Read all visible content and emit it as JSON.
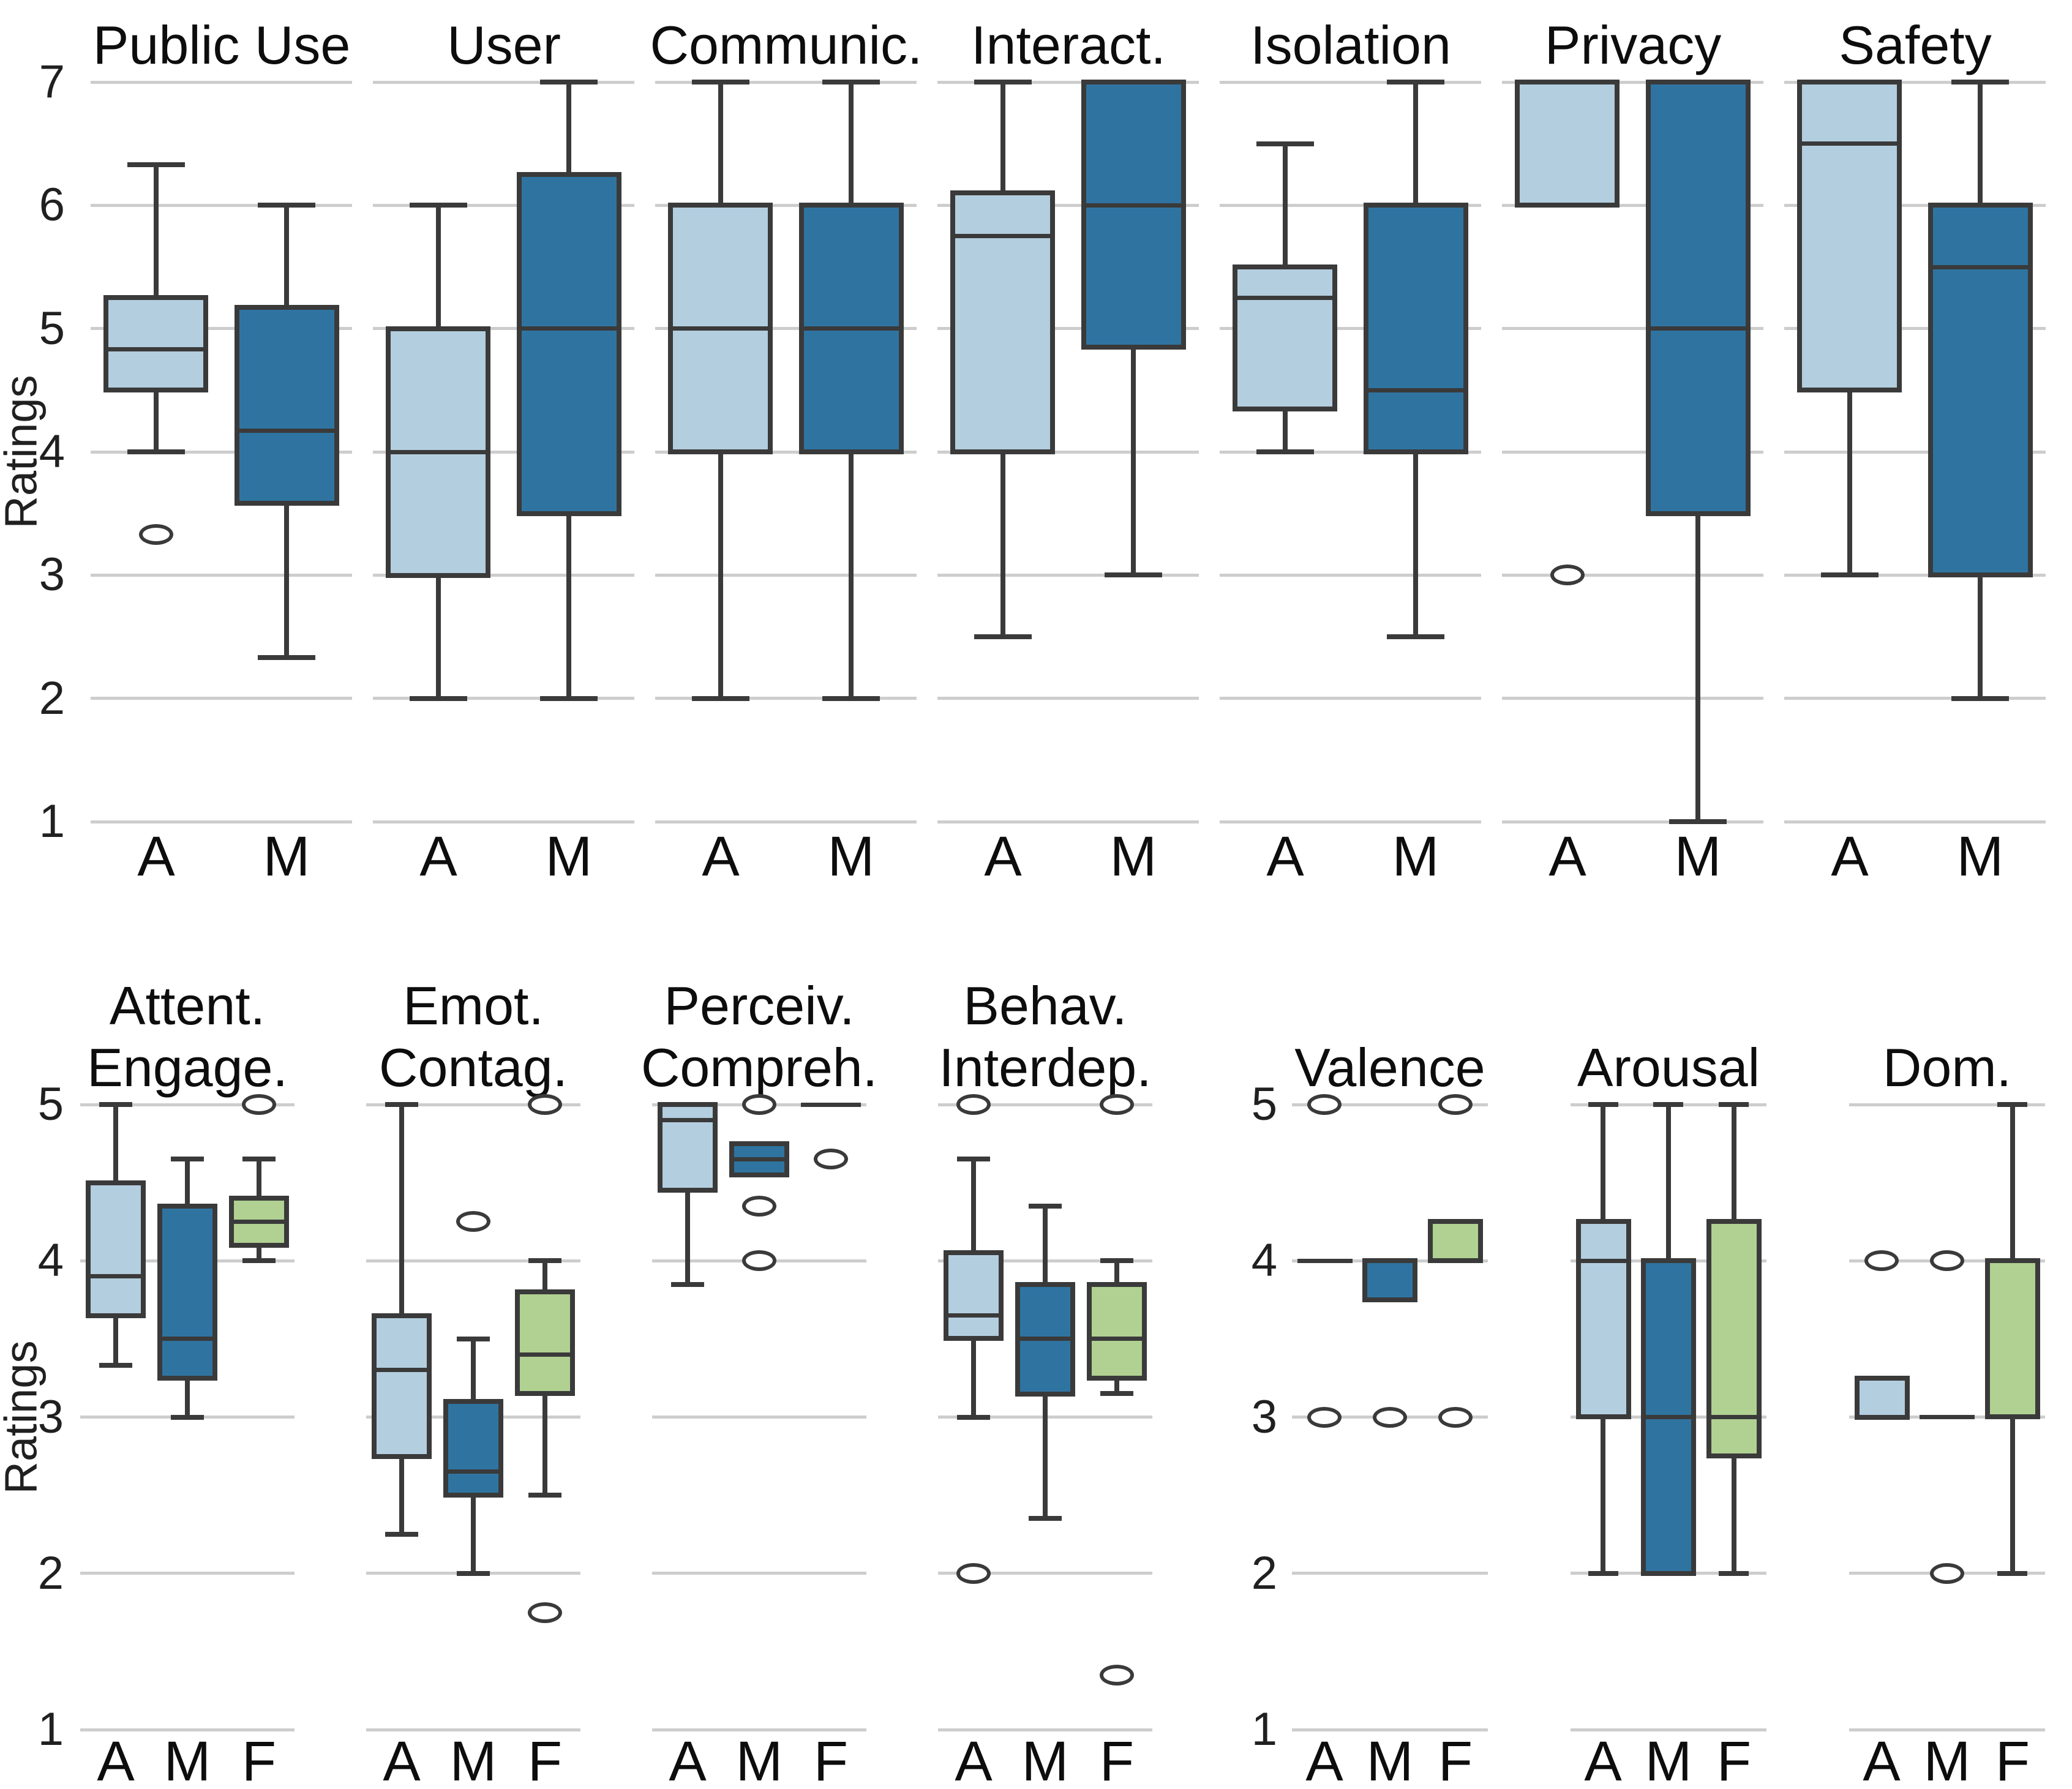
{
  "chart_data": {
    "type": "boxplot",
    "title": "",
    "ylabel": "Ratings",
    "grid": true,
    "colors": {
      "A": "#b3cedf",
      "M": "#2f74a1",
      "F": "#b0d192",
      "box_border": "#3a3a3a",
      "gridline": "#cdcdcd",
      "text": "#111111"
    },
    "rows": [
      {
        "ylabel": "Ratings",
        "ylim": [
          1,
          7
        ],
        "yticks": [
          7,
          6,
          5,
          4,
          3,
          2,
          1
        ],
        "categories": [
          "A",
          "M"
        ],
        "groups": [
          {
            "panels": [
              {
                "title": "Public Use",
                "boxes": [
                  {
                    "cat": "A",
                    "whislo": 4.0,
                    "q1": 4.5,
                    "med": 4.83,
                    "q3": 5.25,
                    "whishi": 6.33,
                    "fliers": [
                      3.33
                    ]
                  },
                  {
                    "cat": "M",
                    "whislo": 2.33,
                    "q1": 3.58,
                    "med": 4.17,
                    "q3": 5.17,
                    "whishi": 6.0,
                    "fliers": []
                  }
                ]
              },
              {
                "title": "User",
                "boxes": [
                  {
                    "cat": "A",
                    "whislo": 2.0,
                    "q1": 3.0,
                    "med": 4.0,
                    "q3": 5.0,
                    "whishi": 6.0,
                    "fliers": []
                  },
                  {
                    "cat": "M",
                    "whislo": 2.0,
                    "q1": 3.5,
                    "med": 5.0,
                    "q3": 6.25,
                    "whishi": 7.0,
                    "fliers": []
                  }
                ]
              },
              {
                "title": "Communic.",
                "boxes": [
                  {
                    "cat": "A",
                    "whislo": 2.0,
                    "q1": 4.0,
                    "med": 5.0,
                    "q3": 6.0,
                    "whishi": 7.0,
                    "fliers": []
                  },
                  {
                    "cat": "M",
                    "whislo": 2.0,
                    "q1": 4.0,
                    "med": 5.0,
                    "q3": 6.0,
                    "whishi": 7.0,
                    "fliers": []
                  }
                ]
              },
              {
                "title": "Interact.",
                "boxes": [
                  {
                    "cat": "A",
                    "whislo": 2.5,
                    "q1": 4.0,
                    "med": 5.75,
                    "q3": 6.1,
                    "whishi": 7.0,
                    "fliers": []
                  },
                  {
                    "cat": "M",
                    "whislo": 3.0,
                    "q1": 4.85,
                    "med": 6.0,
                    "q3": 7.0,
                    "whishi": 7.0,
                    "fliers": []
                  }
                ]
              },
              {
                "title": "Isolation",
                "boxes": [
                  {
                    "cat": "A",
                    "whislo": 4.0,
                    "q1": 4.35,
                    "med": 5.25,
                    "q3": 5.5,
                    "whishi": 6.5,
                    "fliers": []
                  },
                  {
                    "cat": "M",
                    "whislo": 2.5,
                    "q1": 4.0,
                    "med": 4.5,
                    "q3": 6.0,
                    "whishi": 7.0,
                    "fliers": []
                  }
                ]
              },
              {
                "title": "Privacy",
                "boxes": [
                  {
                    "cat": "A",
                    "whislo": 6.0,
                    "q1": 6.0,
                    "med": 7.0,
                    "q3": 7.0,
                    "whishi": 7.0,
                    "fliers": [
                      3.0
                    ]
                  },
                  {
                    "cat": "M",
                    "whislo": 1.0,
                    "q1": 3.5,
                    "med": 5.0,
                    "q3": 7.0,
                    "whishi": 7.0,
                    "fliers": []
                  }
                ]
              },
              {
                "title": "Safety",
                "boxes": [
                  {
                    "cat": "A",
                    "whislo": 3.0,
                    "q1": 4.5,
                    "med": 6.5,
                    "q3": 7.0,
                    "whishi": 7.0,
                    "fliers": []
                  },
                  {
                    "cat": "M",
                    "whislo": 2.0,
                    "q1": 3.0,
                    "med": 5.5,
                    "q3": 6.0,
                    "whishi": 7.0,
                    "fliers": []
                  }
                ]
              }
            ]
          }
        ]
      },
      {
        "ylabel": "Ratings",
        "ylim": [
          1,
          5
        ],
        "yticks": [
          5,
          4,
          3,
          2,
          1
        ],
        "categories": [
          "A",
          "M",
          "F"
        ],
        "groups": [
          {
            "panels": [
              {
                "title": "Attent.\nEngage.",
                "boxes": [
                  {
                    "cat": "A",
                    "whislo": 3.33,
                    "q1": 3.65,
                    "med": 3.9,
                    "q3": 4.5,
                    "whishi": 5.0,
                    "fliers": []
                  },
                  {
                    "cat": "M",
                    "whislo": 3.0,
                    "q1": 3.25,
                    "med": 3.5,
                    "q3": 4.35,
                    "whishi": 4.65,
                    "fliers": []
                  },
                  {
                    "cat": "F",
                    "whislo": 4.0,
                    "q1": 4.1,
                    "med": 4.25,
                    "q3": 4.4,
                    "whishi": 4.65,
                    "fliers": [
                      5.0
                    ]
                  }
                ]
              },
              {
                "title": "Emot.\nContag.",
                "boxes": [
                  {
                    "cat": "A",
                    "whislo": 2.25,
                    "q1": 2.75,
                    "med": 3.3,
                    "q3": 3.65,
                    "whishi": 5.0,
                    "fliers": []
                  },
                  {
                    "cat": "M",
                    "whislo": 2.0,
                    "q1": 2.5,
                    "med": 2.65,
                    "q3": 3.1,
                    "whishi": 3.5,
                    "fliers": [
                      4.25
                    ]
                  },
                  {
                    "cat": "F",
                    "whislo": 2.5,
                    "q1": 3.15,
                    "med": 3.4,
                    "q3": 3.8,
                    "whishi": 4.0,
                    "fliers": [
                      5.0,
                      1.75
                    ]
                  }
                ]
              },
              {
                "title": "Perceiv.\nCompreh.",
                "boxes": [
                  {
                    "cat": "A",
                    "whislo": 3.85,
                    "q1": 4.45,
                    "med": 4.9,
                    "q3": 5.0,
                    "whishi": 5.0,
                    "fliers": []
                  },
                  {
                    "cat": "M",
                    "whislo": 4.55,
                    "q1": 4.55,
                    "med": 4.65,
                    "q3": 4.75,
                    "whishi": 4.75,
                    "fliers": [
                      5.0,
                      4.35,
                      4.0
                    ]
                  },
                  {
                    "cat": "F",
                    "whislo": 5.0,
                    "q1": 5.0,
                    "med": 5.0,
                    "q3": 5.0,
                    "whishi": 5.0,
                    "fliers": [
                      4.65
                    ]
                  }
                ]
              },
              {
                "title": "Behav.\nInterdep.",
                "boxes": [
                  {
                    "cat": "A",
                    "whislo": 3.0,
                    "q1": 3.5,
                    "med": 3.65,
                    "q3": 4.05,
                    "whishi": 4.65,
                    "fliers": [
                      5.0,
                      2.0
                    ]
                  },
                  {
                    "cat": "M",
                    "whislo": 2.35,
                    "q1": 3.15,
                    "med": 3.5,
                    "q3": 3.85,
                    "whishi": 4.35,
                    "fliers": []
                  },
                  {
                    "cat": "F",
                    "whislo": 3.15,
                    "q1": 3.25,
                    "med": 3.5,
                    "q3": 3.85,
                    "whishi": 4.0,
                    "fliers": [
                      5.0,
                      1.35
                    ]
                  }
                ]
              }
            ]
          },
          {
            "panels": [
              {
                "title": "Valence",
                "boxes": [
                  {
                    "cat": "A",
                    "whislo": 4.0,
                    "q1": 4.0,
                    "med": 4.0,
                    "q3": 4.0,
                    "whishi": 4.0,
                    "fliers": [
                      5.0,
                      3.0
                    ]
                  },
                  {
                    "cat": "M",
                    "whislo": 3.75,
                    "q1": 3.75,
                    "med": 4.0,
                    "q3": 4.0,
                    "whishi": 4.0,
                    "fliers": [
                      3.0
                    ]
                  },
                  {
                    "cat": "F",
                    "whislo": 4.0,
                    "q1": 4.0,
                    "med": 4.0,
                    "q3": 4.25,
                    "whishi": 4.25,
                    "fliers": [
                      5.0,
                      3.0
                    ]
                  }
                ]
              },
              {
                "title": "Arousal",
                "boxes": [
                  {
                    "cat": "A",
                    "whislo": 2.0,
                    "q1": 3.0,
                    "med": 4.0,
                    "q3": 4.25,
                    "whishi": 5.0,
                    "fliers": []
                  },
                  {
                    "cat": "M",
                    "whislo": 2.0,
                    "q1": 2.0,
                    "med": 3.0,
                    "q3": 4.0,
                    "whishi": 5.0,
                    "fliers": []
                  },
                  {
                    "cat": "F",
                    "whislo": 2.0,
                    "q1": 2.75,
                    "med": 3.0,
                    "q3": 4.25,
                    "whishi": 5.0,
                    "fliers": []
                  }
                ]
              },
              {
                "title": "Dom.",
                "boxes": [
                  {
                    "cat": "A",
                    "whislo": 3.0,
                    "q1": 3.0,
                    "med": 3.0,
                    "q3": 3.25,
                    "whishi": 3.25,
                    "fliers": [
                      4.0
                    ]
                  },
                  {
                    "cat": "M",
                    "whislo": 3.0,
                    "q1": 3.0,
                    "med": 3.0,
                    "q3": 3.0,
                    "whishi": 3.0,
                    "fliers": [
                      4.0,
                      2.0
                    ]
                  },
                  {
                    "cat": "F",
                    "whislo": 2.0,
                    "q1": 3.0,
                    "med": 3.0,
                    "q3": 4.0,
                    "whishi": 5.0,
                    "fliers": []
                  }
                ]
              }
            ]
          }
        ]
      }
    ]
  }
}
